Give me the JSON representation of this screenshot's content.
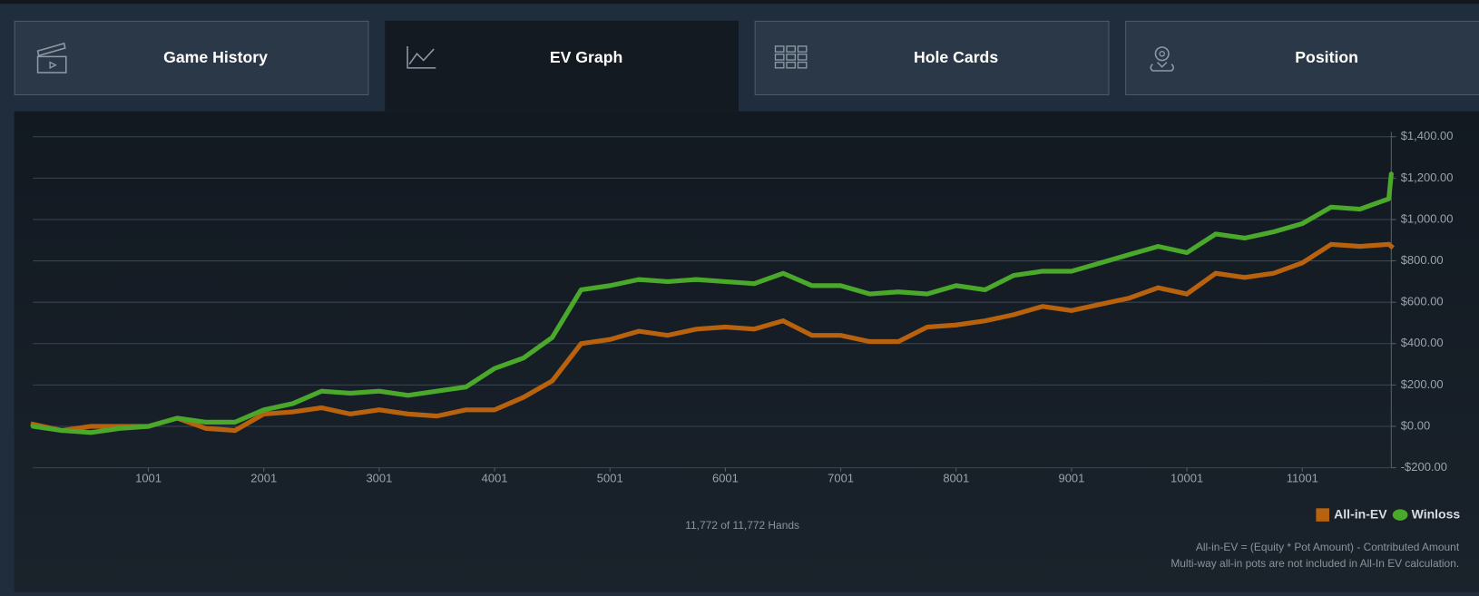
{
  "tabs": [
    {
      "label": "Game History"
    },
    {
      "label": "EV Graph"
    },
    {
      "label": "Hole Cards"
    },
    {
      "label": "Position"
    }
  ],
  "active_tab": 1,
  "chart_data": {
    "type": "line",
    "x": [
      1,
      251,
      501,
      751,
      1001,
      1251,
      1501,
      1751,
      2001,
      2251,
      2501,
      2751,
      3001,
      3251,
      3501,
      3751,
      4001,
      4251,
      4501,
      4751,
      5001,
      5251,
      5501,
      5751,
      6001,
      6251,
      6501,
      6751,
      7001,
      7251,
      7501,
      7751,
      8001,
      8251,
      8501,
      8751,
      9001,
      9251,
      9501,
      9751,
      10001,
      10251,
      10501,
      10751,
      11001,
      11251,
      11501,
      11751,
      11772
    ],
    "series": [
      {
        "name": "All-in-EV",
        "color": "#b8620e",
        "marker": "square",
        "values": [
          10,
          -20,
          0,
          0,
          0,
          40,
          -10,
          -20,
          60,
          70,
          90,
          60,
          80,
          60,
          50,
          80,
          80,
          140,
          220,
          400,
          420,
          460,
          440,
          470,
          480,
          470,
          510,
          440,
          440,
          410,
          410,
          480,
          490,
          510,
          540,
          580,
          560,
          590,
          620,
          670,
          640,
          740,
          720,
          740,
          790,
          880,
          870,
          880,
          870
        ]
      },
      {
        "name": "Winloss",
        "color": "#4aa82a",
        "marker": "circle",
        "values": [
          0,
          -20,
          -30,
          -10,
          0,
          40,
          20,
          20,
          80,
          110,
          170,
          160,
          170,
          150,
          170,
          190,
          280,
          330,
          430,
          660,
          680,
          710,
          700,
          710,
          700,
          690,
          740,
          680,
          680,
          640,
          650,
          640,
          680,
          660,
          730,
          750,
          750,
          790,
          830,
          870,
          840,
          930,
          910,
          940,
          980,
          1060,
          1050,
          1100,
          1220
        ]
      }
    ],
    "xlim": [
      1,
      11772
    ],
    "xticks": [
      1001,
      2001,
      3001,
      4001,
      5001,
      6001,
      7001,
      8001,
      9001,
      10001,
      11001
    ],
    "ylim": [
      -200,
      1400
    ],
    "yticks": [
      {
        "value": -200,
        "label": "-$200.00"
      },
      {
        "value": 0,
        "label": "$0.00"
      },
      {
        "value": 200,
        "label": "$200.00"
      },
      {
        "value": 400,
        "label": "$400.00"
      },
      {
        "value": 600,
        "label": "$600.00"
      },
      {
        "value": 800,
        "label": "$800.00"
      },
      {
        "value": 1000,
        "label": "$1,000.00"
      },
      {
        "value": 1200,
        "label": "$1,200.00"
      },
      {
        "value": 1400,
        "label": "$1,400.00"
      }
    ],
    "grid": true,
    "legend": "bottom-right",
    "annotations": [
      "11,772 of 11,772 Hands",
      "All-in-EV = (Equity * Pot Amount) - Contributed Amount",
      "Multi-way all-in pots are not included in All-In EV calculation."
    ]
  }
}
